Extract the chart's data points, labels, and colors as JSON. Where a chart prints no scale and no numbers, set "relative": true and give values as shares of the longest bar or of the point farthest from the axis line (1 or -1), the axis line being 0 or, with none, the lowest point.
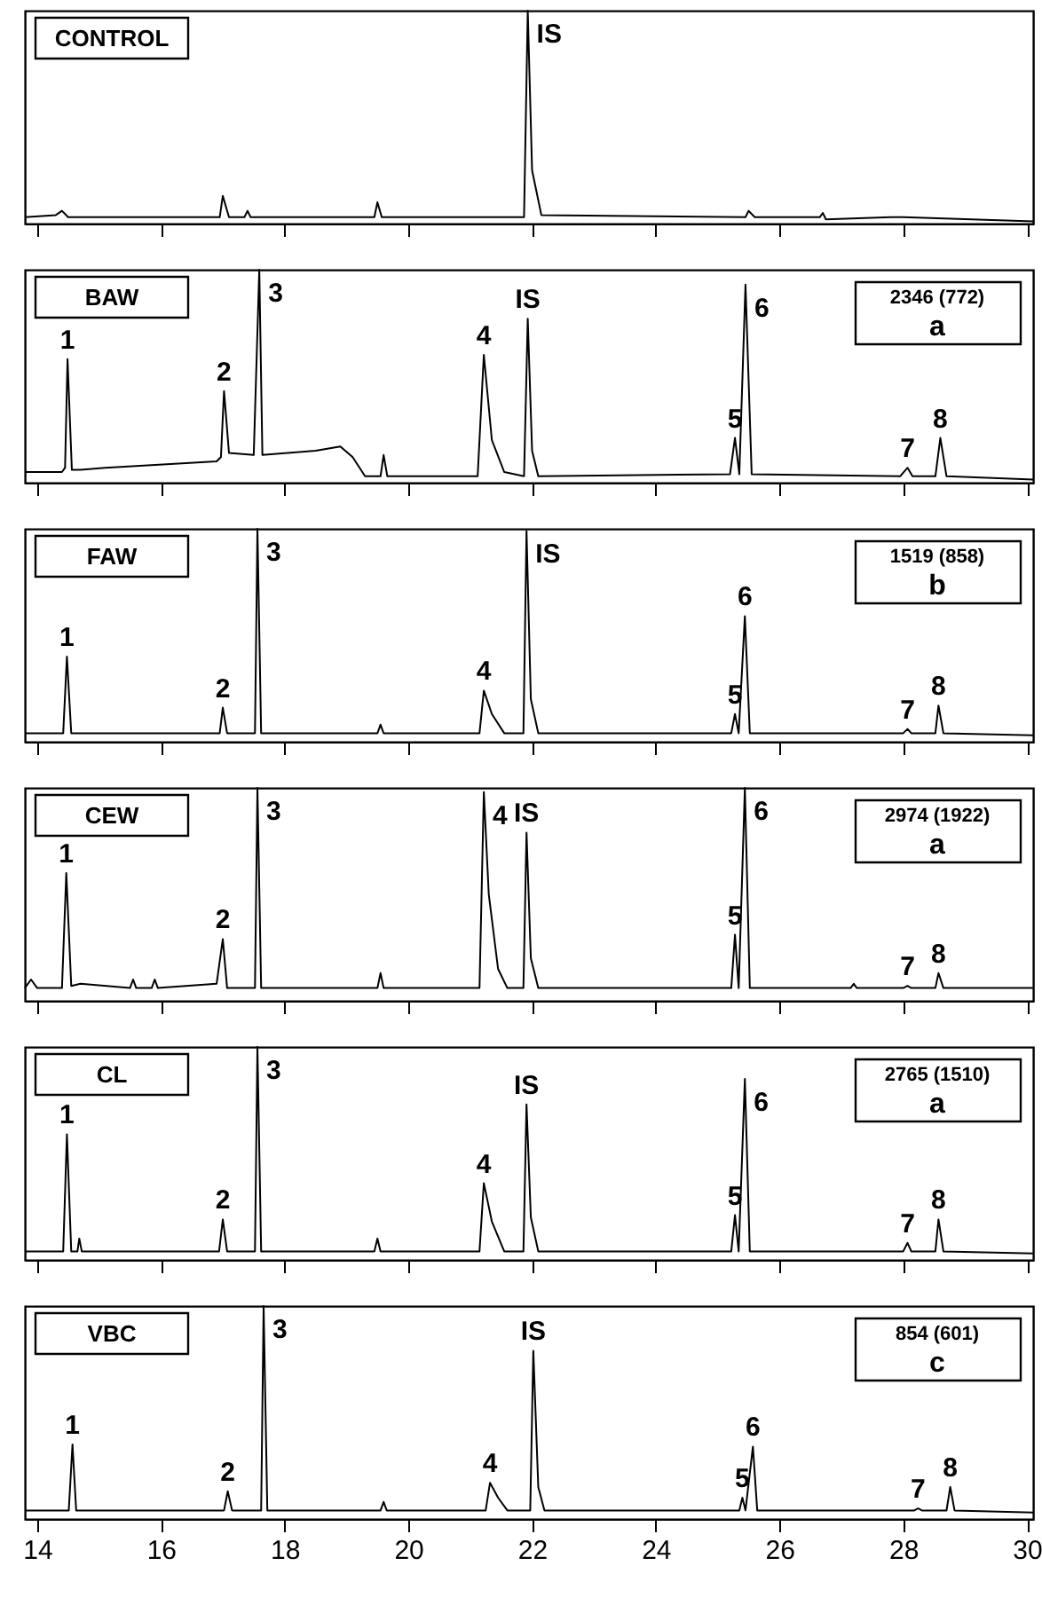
{
  "chart_data": [
    {
      "type": "line",
      "title": "CONTROL",
      "relative": true,
      "color": "#000000",
      "xlim": [
        13.8,
        30.1
      ],
      "xticks": [
        14,
        16,
        18,
        20,
        22,
        24,
        26,
        28,
        30
      ],
      "tick_labels": false,
      "x": [
        13.8,
        14.3,
        14.4,
        14.5,
        16.95,
        17.0,
        17.1,
        17.35,
        17.4,
        17.45,
        19.45,
        19.5,
        19.57,
        21.87,
        21.93,
        22.0,
        22.15,
        25.45,
        25.5,
        25.6,
        26.65,
        26.7,
        26.75,
        27.8,
        28.0,
        30.1
      ],
      "values": [
        0.03,
        0.04,
        0.06,
        0.03,
        0.03,
        0.13,
        0.03,
        0.03,
        0.06,
        0.03,
        0.03,
        0.1,
        0.03,
        0.03,
        1,
        0.25,
        0.04,
        0.03,
        0.06,
        0.03,
        0.03,
        0.05,
        0.02,
        0.03,
        0.03,
        0.01
      ],
      "annotations": [
        {
          "text": "IS",
          "x": 21.93,
          "y": 1
        }
      ]
    },
    {
      "type": "line",
      "title": "BAW",
      "relative": true,
      "color": "#000000",
      "xlim": [
        13.8,
        30.1
      ],
      "xticks": [
        14,
        16,
        18,
        20,
        22,
        24,
        26,
        28,
        30
      ],
      "tick_labels": false,
      "x": [
        13.8,
        14.4,
        14.45,
        14.49,
        14.56,
        14.7,
        15.1,
        16.9,
        16.97,
        17.02,
        17.1,
        17.5,
        17.59,
        17.64,
        18.5,
        18.9,
        19.1,
        19.3,
        19.55,
        19.6,
        19.66,
        21.12,
        21.22,
        21.35,
        21.55,
        21.87,
        21.93,
        22.0,
        22.1,
        25.2,
        25.28,
        25.35,
        25.45,
        25.55,
        27.95,
        28.07,
        28.15,
        28.52,
        28.6,
        28.7,
        30.1
      ],
      "values": [
        0.05,
        0.05,
        0.07,
        0.58,
        0.06,
        0.06,
        0.07,
        0.1,
        0.12,
        0.43,
        0.14,
        0.13,
        1,
        0.13,
        0.15,
        0.17,
        0.12,
        0.03,
        0.03,
        0.13,
        0.03,
        0.03,
        0.6,
        0.2,
        0.05,
        0.03,
        0.77,
        0.15,
        0.03,
        0.04,
        0.21,
        0.04,
        0.93,
        0.04,
        0.03,
        0.07,
        0.03,
        0.03,
        0.21,
        0.03,
        0.015
      ],
      "annotations": [
        "2346 (772)",
        "a",
        {
          "text": "1",
          "x": 14.49,
          "y": 0.58
        },
        {
          "text": "2",
          "x": 17.02,
          "y": 0.43
        },
        {
          "text": "3",
          "x": 17.59,
          "y": 1
        },
        {
          "text": "4",
          "x": 21.22,
          "y": 0.6
        },
        {
          "text": "IS",
          "x": 21.93,
          "y": 0.77
        },
        {
          "text": "5",
          "x": 25.28,
          "y": 0.21
        },
        {
          "text": "6",
          "x": 25.45,
          "y": 0.93
        },
        {
          "text": "7",
          "x": 28.07,
          "y": 0.07
        },
        {
          "text": "8",
          "x": 28.6,
          "y": 0.21
        }
      ]
    },
    {
      "type": "line",
      "title": "FAW",
      "relative": true,
      "color": "#000000",
      "xlim": [
        13.8,
        30.1
      ],
      "xticks": [
        14,
        16,
        18,
        20,
        22,
        24,
        26,
        28,
        30
      ],
      "tick_labels": false,
      "x": [
        13.8,
        14.42,
        14.48,
        14.55,
        16.95,
        17.0,
        17.07,
        17.52,
        17.56,
        17.62,
        19.5,
        19.55,
        19.6,
        21.15,
        21.22,
        21.35,
        21.55,
        21.86,
        21.91,
        21.98,
        22.1,
        25.22,
        25.28,
        25.34,
        25.44,
        25.52,
        28.0,
        28.07,
        28.13,
        28.52,
        28.57,
        28.65,
        30.1
      ],
      "values": [
        0.04,
        0.04,
        0.4,
        0.04,
        0.04,
        0.16,
        0.04,
        0.04,
        1,
        0.04,
        0.04,
        0.08,
        0.04,
        0.04,
        0.24,
        0.13,
        0.04,
        0.04,
        0.99,
        0.2,
        0.04,
        0.04,
        0.13,
        0.04,
        0.59,
        0.04,
        0.04,
        0.06,
        0.04,
        0.04,
        0.17,
        0.04,
        0.03
      ],
      "annotations": [
        "1519 (858)",
        "b",
        {
          "text": "1",
          "x": 14.48,
          "y": 0.4
        },
        {
          "text": "2",
          "x": 17.0,
          "y": 0.16
        },
        {
          "text": "3",
          "x": 17.56,
          "y": 1
        },
        {
          "text": "4",
          "x": 21.22,
          "y": 0.24
        },
        {
          "text": "IS",
          "x": 21.91,
          "y": 0.99
        },
        {
          "text": "5",
          "x": 25.28,
          "y": 0.13
        },
        {
          "text": "6",
          "x": 25.44,
          "y": 0.59
        },
        {
          "text": "7",
          "x": 28.07,
          "y": 0.06
        },
        {
          "text": "8",
          "x": 28.57,
          "y": 0.17
        }
      ]
    },
    {
      "type": "line",
      "title": "CEW",
      "relative": true,
      "color": "#000000",
      "xlim": [
        13.8,
        30.1
      ],
      "xticks": [
        14,
        16,
        18,
        20,
        22,
        24,
        26,
        28,
        30
      ],
      "tick_labels": false,
      "x": [
        13.8,
        13.9,
        14.0,
        14.4,
        14.47,
        14.55,
        14.7,
        15.5,
        15.55,
        15.6,
        15.85,
        15.9,
        15.95,
        16.9,
        17.0,
        17.07,
        17.52,
        17.56,
        17.62,
        19.5,
        19.55,
        19.6,
        21.15,
        21.22,
        21.3,
        21.45,
        21.6,
        21.86,
        21.91,
        21.98,
        22.1,
        25.22,
        25.28,
        25.34,
        25.44,
        25.52,
        27.15,
        27.2,
        27.25,
        28.0,
        28.07,
        28.13,
        28.52,
        28.57,
        28.65,
        30.1
      ],
      "values": [
        0.06,
        0.1,
        0.06,
        0.06,
        0.6,
        0.07,
        0.08,
        0.06,
        0.1,
        0.06,
        0.06,
        0.1,
        0.06,
        0.08,
        0.29,
        0.06,
        0.06,
        1,
        0.06,
        0.06,
        0.13,
        0.06,
        0.06,
        0.98,
        0.5,
        0.15,
        0.06,
        0.06,
        0.79,
        0.2,
        0.06,
        0.06,
        0.31,
        0.06,
        1,
        0.06,
        0.06,
        0.08,
        0.06,
        0.06,
        0.07,
        0.06,
        0.06,
        0.13,
        0.06,
        0.06
      ],
      "annotations": [
        "2974 (1922)",
        "a",
        {
          "text": "1",
          "x": 14.47,
          "y": 0.6
        },
        {
          "text": "2",
          "x": 17.0,
          "y": 0.29
        },
        {
          "text": "3",
          "x": 17.56,
          "y": 1
        },
        {
          "text": "4",
          "x": 21.22,
          "y": 0.98
        },
        {
          "text": "IS",
          "x": 21.91,
          "y": 0.79
        },
        {
          "text": "5",
          "x": 25.28,
          "y": 0.31
        },
        {
          "text": "6",
          "x": 25.44,
          "y": 1
        },
        {
          "text": "7",
          "x": 28.07,
          "y": 0.07
        },
        {
          "text": "8",
          "x": 28.57,
          "y": 0.13
        }
      ]
    },
    {
      "type": "line",
      "title": "CL",
      "relative": true,
      "color": "#000000",
      "xlim": [
        13.8,
        30.1
      ],
      "xticks": [
        14,
        16,
        18,
        20,
        22,
        24,
        26,
        28,
        30
      ],
      "tick_labels": false,
      "x": [
        13.8,
        14.42,
        14.48,
        14.55,
        14.65,
        14.68,
        14.72,
        16.94,
        17.0,
        17.07,
        17.52,
        17.56,
        17.62,
        19.45,
        19.5,
        19.55,
        21.15,
        21.22,
        21.35,
        21.55,
        21.86,
        21.91,
        21.98,
        22.1,
        25.22,
        25.28,
        25.34,
        25.44,
        25.52,
        28.0,
        28.07,
        28.13,
        28.52,
        28.57,
        28.65,
        30.1
      ],
      "values": [
        0.04,
        0.04,
        0.59,
        0.04,
        0.04,
        0.1,
        0.04,
        0.04,
        0.19,
        0.04,
        0.04,
        1,
        0.04,
        0.04,
        0.1,
        0.04,
        0.04,
        0.36,
        0.18,
        0.04,
        0.04,
        0.73,
        0.2,
        0.04,
        0.04,
        0.21,
        0.04,
        0.85,
        0.04,
        0.04,
        0.08,
        0.04,
        0.04,
        0.19,
        0.04,
        0.03
      ],
      "annotations": [
        "2765 (1510)",
        "a",
        {
          "text": "1",
          "x": 14.48,
          "y": 0.59
        },
        {
          "text": "2",
          "x": 17.0,
          "y": 0.19
        },
        {
          "text": "3",
          "x": 17.56,
          "y": 1
        },
        {
          "text": "4",
          "x": 21.22,
          "y": 0.36
        },
        {
          "text": "IS",
          "x": 21.91,
          "y": 0.73
        },
        {
          "text": "5",
          "x": 25.28,
          "y": 0.21
        },
        {
          "text": "6",
          "x": 25.44,
          "y": 0.85
        },
        {
          "text": "7",
          "x": 28.07,
          "y": 0.08
        },
        {
          "text": "8",
          "x": 28.57,
          "y": 0.19
        }
      ]
    },
    {
      "type": "line",
      "title": "VBC",
      "relative": true,
      "color": "#000000",
      "xlim": [
        13.8,
        30.1
      ],
      "xticks": [
        14,
        16,
        18,
        20,
        22,
        24,
        26,
        28,
        30
      ],
      "tick_labels": "x",
      "x": [
        13.8,
        14.51,
        14.57,
        14.63,
        17.02,
        17.08,
        17.15,
        17.62,
        17.66,
        17.72,
        19.55,
        19.6,
        19.65,
        21.25,
        21.32,
        21.45,
        21.6,
        21.97,
        22.02,
        22.1,
        22.2,
        25.35,
        25.4,
        25.45,
        25.57,
        25.64,
        28.18,
        28.24,
        28.3,
        28.7,
        28.76,
        28.83,
        30.1
      ],
      "values": [
        0.04,
        0.04,
        0.35,
        0.04,
        0.04,
        0.13,
        0.04,
        0.04,
        1,
        0.04,
        0.04,
        0.08,
        0.04,
        0.04,
        0.17,
        0.1,
        0.04,
        0.04,
        0.79,
        0.15,
        0.04,
        0.04,
        0.1,
        0.04,
        0.34,
        0.04,
        0.04,
        0.05,
        0.04,
        0.04,
        0.15,
        0.04,
        0.03
      ],
      "annotations": [
        "854 (601)",
        "c",
        {
          "text": "1",
          "x": 14.57,
          "y": 0.35
        },
        {
          "text": "2",
          "x": 17.08,
          "y": 0.13
        },
        {
          "text": "3",
          "x": 17.66,
          "y": 1
        },
        {
          "text": "4",
          "x": 21.32,
          "y": 0.17
        },
        {
          "text": "IS",
          "x": 22.02,
          "y": 0.79
        },
        {
          "text": "5",
          "x": 25.4,
          "y": 0.1
        },
        {
          "text": "6",
          "x": 25.57,
          "y": 0.34
        },
        {
          "text": "7",
          "x": 28.24,
          "y": 0.05
        },
        {
          "text": "8",
          "x": 28.76,
          "y": 0.15
        }
      ]
    }
  ]
}
